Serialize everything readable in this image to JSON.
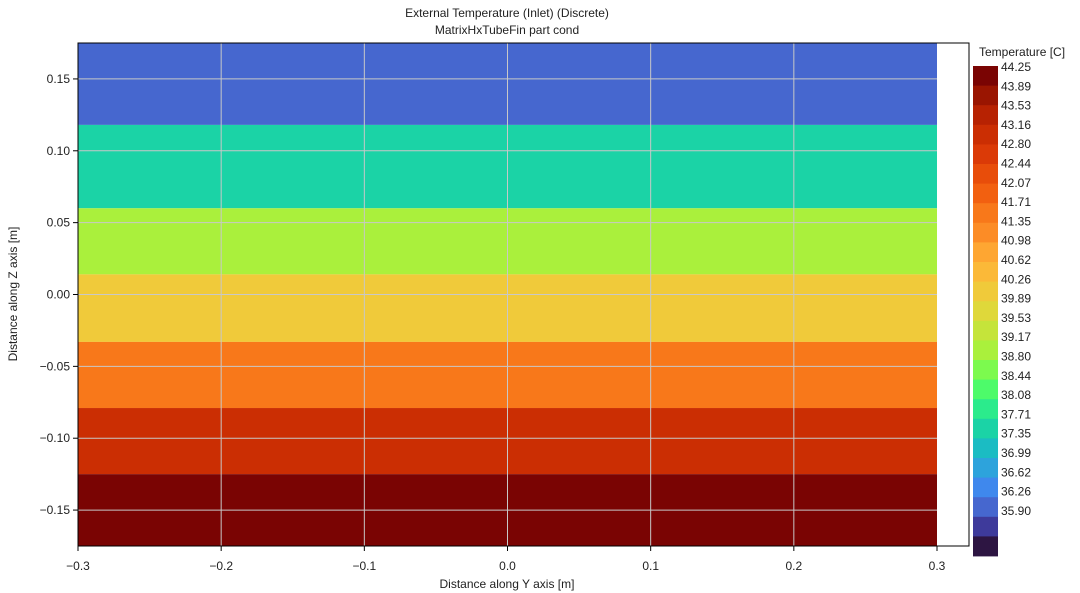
{
  "title": "External Temperature (Inlet) (Discrete)",
  "subtitle": "MatrixHxTubeFin part cond",
  "chart_data": {
    "type": "heatmap",
    "title": "External Temperature (Inlet) (Discrete)",
    "subtitle": "MatrixHxTubeFin part cond",
    "xlabel": "Distance along Y axis [m]",
    "ylabel": "Distance along Z axis [m]",
    "xlim": [
      -0.3,
      0.3
    ],
    "ylim": [
      -0.175,
      0.175
    ],
    "xticks": [
      -0.3,
      -0.2,
      -0.1,
      0.0,
      0.1,
      0.2,
      0.3
    ],
    "xtick_labels": [
      "−0.3",
      "−0.2",
      "−0.1",
      "0.0",
      "0.1",
      "0.2",
      "0.3"
    ],
    "yticks": [
      0.15,
      0.1,
      0.05,
      0.0,
      -0.05,
      -0.1,
      -0.15
    ],
    "ytick_labels": [
      "0.15",
      "0.10",
      "0.05",
      "0.00",
      "−0.05",
      "−0.10",
      "−0.15"
    ],
    "grid": true,
    "bands": [
      {
        "z_min": 0.118,
        "z_max": 0.175,
        "temperature": 36.08
      },
      {
        "z_min": 0.06,
        "z_max": 0.118,
        "temperature": 37.53
      },
      {
        "z_min": 0.014,
        "z_max": 0.06,
        "temperature": 38.98
      },
      {
        "z_min": -0.033,
        "z_max": 0.014,
        "temperature": 40.07
      },
      {
        "z_min": -0.079,
        "z_max": -0.033,
        "temperature": 41.53
      },
      {
        "z_min": -0.125,
        "z_max": -0.079,
        "temperature": 42.98
      },
      {
        "z_min": -0.175,
        "z_max": -0.125,
        "temperature": 44.07
      }
    ],
    "colorbar": {
      "label": "Temperature [C]",
      "levels": [
        "44.25",
        "43.89",
        "43.53",
        "43.16",
        "42.80",
        "42.44",
        "42.07",
        "41.71",
        "41.35",
        "40.98",
        "40.62",
        "40.26",
        "39.89",
        "39.53",
        "39.17",
        "38.80",
        "38.44",
        "38.08",
        "37.71",
        "37.35",
        "36.99",
        "36.62",
        "36.26",
        "35.90"
      ],
      "colors": [
        "#7a0403",
        "#9a1501",
        "#b72202",
        "#cb2e03",
        "#db3a07",
        "#e84d0a",
        "#f26010",
        "#f8781a",
        "#fc8c26",
        "#fea632",
        "#fbb938",
        "#f0ca3a",
        "#dfd83a",
        "#c5e43a",
        "#aaf03c",
        "#7cfa4e",
        "#4dfb6a",
        "#2beb8c",
        "#1bd3a6",
        "#1bbcc3",
        "#2da3dc",
        "#3f88ed",
        "#4667cf",
        "#3e3a9b",
        "#2d1542"
      ]
    }
  }
}
